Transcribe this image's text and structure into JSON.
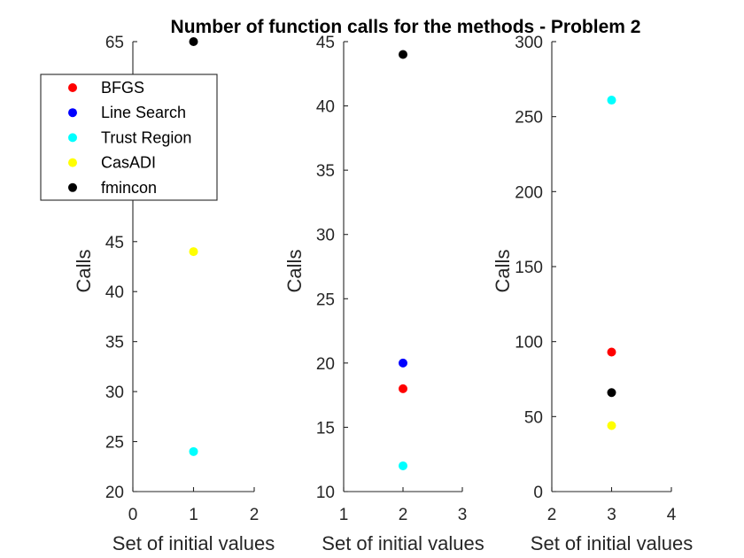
{
  "chart_data": {
    "type": "scatter",
    "title": "Number of function calls for the methods - Problem 2",
    "legend": {
      "placement": "top-left",
      "entries": [
        {
          "name": "BFGS",
          "color": "#ff0000"
        },
        {
          "name": "Line Search",
          "color": "#0000ff"
        },
        {
          "name": "Trust Region",
          "color": "#00ffff"
        },
        {
          "name": "CasADI",
          "color": "#ffff00"
        },
        {
          "name": "fmincon",
          "color": "#000000"
        }
      ]
    },
    "subplots": [
      {
        "xlabel": "Set of initial values",
        "ylabel": "Calls",
        "xlim": [
          0,
          2
        ],
        "ylim": [
          20,
          65
        ],
        "xticks": [
          "0",
          "1",
          "2"
        ],
        "yticks": [
          "20",
          "25",
          "30",
          "35",
          "40",
          "45",
          "50",
          "55",
          "60",
          "65"
        ],
        "points": [
          {
            "series": "Trust Region",
            "x": 1,
            "y": 24,
            "color": "#00ffff"
          },
          {
            "series": "CasADI",
            "x": 1,
            "y": 44,
            "color": "#ffff00"
          },
          {
            "series": "fmincon",
            "x": 1,
            "y": 65,
            "color": "#000000"
          }
        ]
      },
      {
        "xlabel": "Set of initial values",
        "ylabel": "Calls",
        "xlim": [
          1,
          3
        ],
        "ylim": [
          10,
          45
        ],
        "xticks": [
          "1",
          "2",
          "3"
        ],
        "yticks": [
          "10",
          "15",
          "20",
          "25",
          "30",
          "35",
          "40",
          "45"
        ],
        "points": [
          {
            "series": "Trust Region",
            "x": 2,
            "y": 12,
            "color": "#00ffff"
          },
          {
            "series": "BFGS",
            "x": 2,
            "y": 18,
            "color": "#ff0000"
          },
          {
            "series": "Line Search",
            "x": 2,
            "y": 20,
            "color": "#0000ff"
          },
          {
            "series": "fmincon",
            "x": 2,
            "y": 44,
            "color": "#000000"
          }
        ]
      },
      {
        "xlabel": "Set of initial values",
        "ylabel": "Calls",
        "xlim": [
          2,
          4
        ],
        "ylim": [
          0,
          300
        ],
        "xticks": [
          "2",
          "3",
          "4"
        ],
        "yticks": [
          "0",
          "50",
          "100",
          "150",
          "200",
          "250",
          "300"
        ],
        "points": [
          {
            "series": "CasADI",
            "x": 3,
            "y": 44,
            "color": "#ffff00"
          },
          {
            "series": "fmincon",
            "x": 3,
            "y": 66,
            "color": "#000000"
          },
          {
            "series": "BFGS",
            "x": 3,
            "y": 93,
            "color": "#ff0000"
          },
          {
            "series": "Trust Region",
            "x": 3,
            "y": 261,
            "color": "#00ffff"
          }
        ]
      }
    ]
  }
}
